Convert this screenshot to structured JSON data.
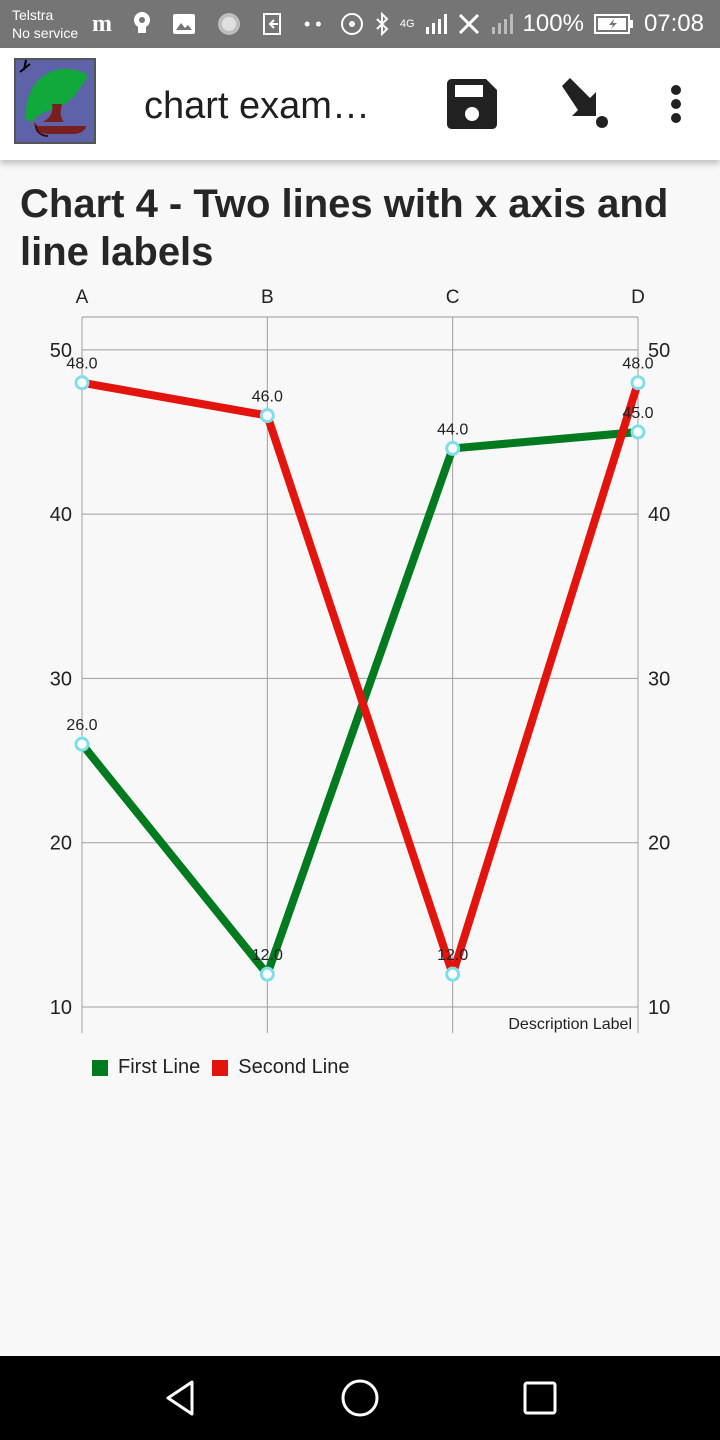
{
  "status_bar": {
    "carrier": "Telstra",
    "service": "No service",
    "network": "4G",
    "battery": "100%",
    "time": "07:08"
  },
  "app_bar": {
    "title": "chart exam…",
    "icons": [
      "app-logo",
      "save-icon",
      "download-icon",
      "more-vert-icon"
    ]
  },
  "page": {
    "title": "Chart 4 - Two lines with x axis and line labels"
  },
  "chart_data": {
    "type": "line",
    "title": "",
    "categories": [
      "A",
      "B",
      "C",
      "D"
    ],
    "x_axis_position": "top",
    "x_axis_description": "Description Label",
    "ylim": [
      10,
      52
    ],
    "y_ticks": [
      10,
      20,
      30,
      40,
      50
    ],
    "y_axis_both_sides": true,
    "grid": true,
    "legend_placement": "bottom-left",
    "point_marker_color": "#80deea",
    "series": [
      {
        "name": "First Line",
        "color": "#007a1f",
        "values": [
          26.0,
          12.0,
          44.0,
          45.0
        ]
      },
      {
        "name": "Second Line",
        "color": "#e3140e",
        "values": [
          48.0,
          46.0,
          12.0,
          48.0
        ]
      }
    ]
  },
  "legend": {
    "items": [
      {
        "label": "First Line",
        "color": "#007a1f"
      },
      {
        "label": "Second Line",
        "color": "#e3140e"
      }
    ]
  }
}
